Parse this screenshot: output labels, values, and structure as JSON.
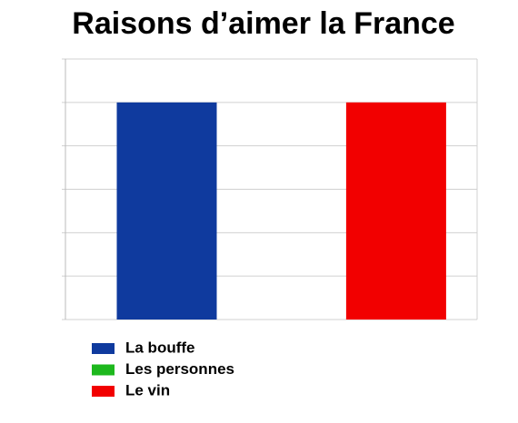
{
  "chart_data": {
    "type": "bar",
    "title": "Raisons d’aimer la France",
    "categories": [
      null
    ],
    "series": [
      {
        "name": "La bouffe",
        "color": "#0f3a9e",
        "values": [
          5
        ]
      },
      {
        "name": "Les personnes",
        "color": "#1db81d",
        "values": [
          0
        ]
      },
      {
        "name": "Le vin",
        "color": "#f20000",
        "values": [
          5
        ]
      }
    ],
    "ylim": [
      0,
      6
    ],
    "yticks": [
      0,
      1,
      2,
      3,
      4,
      5,
      6
    ],
    "grid": true,
    "legend": "bottom-left"
  }
}
